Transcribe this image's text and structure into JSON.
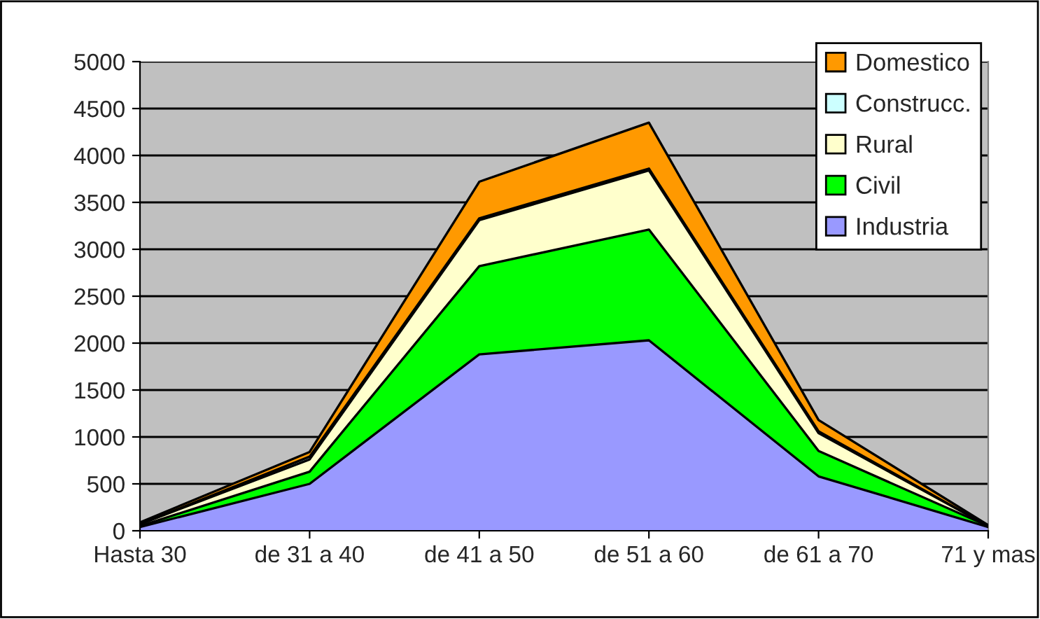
{
  "chart_data": {
    "type": "area",
    "stacked": true,
    "categories": [
      "Hasta 30",
      "de 31 a 40",
      "de 41 a 50",
      "de 51 a 60",
      "de 61 a 70",
      "71 y mas"
    ],
    "series": [
      {
        "name": "Industria",
        "color": "#9999ff",
        "values": [
          40,
          500,
          1880,
          2030,
          580,
          40
        ]
      },
      {
        "name": "Civil",
        "color": "#00ff00",
        "values": [
          10,
          130,
          940,
          1180,
          270,
          10
        ]
      },
      {
        "name": "Rural",
        "color": "#ffffcc",
        "values": [
          20,
          130,
          490,
          630,
          190,
          0
        ]
      },
      {
        "name": "Construcc.",
        "color": "#ccffff",
        "values": [
          0,
          30,
          20,
          20,
          20,
          0
        ]
      },
      {
        "name": "Domestico",
        "color": "#ff9900",
        "values": [
          20,
          50,
          390,
          490,
          120,
          10
        ]
      }
    ],
    "ylim": [
      0,
      5000
    ],
    "yticks": [
      0,
      500,
      1000,
      1500,
      2000,
      2500,
      3000,
      3500,
      4000,
      4500,
      5000
    ],
    "grid": "y",
    "legend": "top right"
  }
}
